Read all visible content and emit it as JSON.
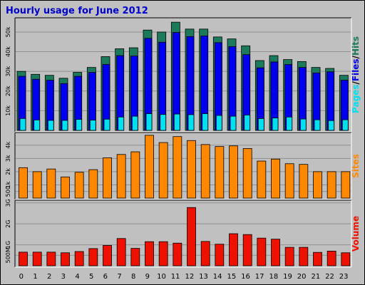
{
  "chart_data": {
    "type": "bar",
    "title": "Hourly usage for June 2012",
    "categories": [
      "0",
      "1",
      "2",
      "3",
      "4",
      "5",
      "6",
      "7",
      "8",
      "9",
      "10",
      "11",
      "12",
      "13",
      "14",
      "15",
      "16",
      "17",
      "18",
      "19",
      "20",
      "21",
      "22",
      "23"
    ],
    "panels": [
      {
        "id": "pages-files-hits",
        "side_labels": [
          "Pages",
          "/",
          "Files",
          "/",
          "Hits"
        ],
        "y_ticks": [
          "10k",
          "20k",
          "30k",
          "40k",
          "50k"
        ],
        "ylim": [
          0,
          56500
        ],
        "series": [
          {
            "name": "Hits",
            "values": [
              30000,
              28500,
              28000,
              26500,
              29500,
              32000,
              37500,
              41500,
              42000,
              51000,
              50000,
              55000,
              51500,
              51500,
              47500,
              46500,
              43000,
              35500,
              38000,
              36000,
              35000,
              32000,
              31500,
              28000
            ]
          },
          {
            "name": "Files",
            "values": [
              27500,
              26000,
              25500,
              23800,
              27500,
              29500,
              33500,
              38000,
              37800,
              46800,
              44800,
              49800,
              47700,
              48000,
              44600,
              42600,
              38500,
              31800,
              34800,
              33500,
              32000,
              29200,
              29800,
              25500
            ]
          },
          {
            "name": "Pages",
            "values": [
              6000,
              5300,
              5100,
              5100,
              5600,
              5200,
              5700,
              6800,
              7200,
              8500,
              8100,
              8300,
              8000,
              8500,
              7600,
              7200,
              7800,
              6000,
              6300,
              6800,
              5800,
              5400,
              5000,
              5400
            ]
          }
        ]
      },
      {
        "id": "sites",
        "side_labels": [
          "Sites"
        ],
        "y_ticks": [
          "500",
          "1k",
          "2k",
          "3k",
          "4k"
        ],
        "ylim": [
          0,
          4850
        ],
        "series": [
          {
            "name": "Sites",
            "values": [
              2300,
              2000,
              2200,
              1600,
              1950,
              2150,
              3050,
              3300,
              3500,
              4750,
              4200,
              4650,
              4350,
              4050,
              3900,
              3950,
              3750,
              2800,
              2950,
              2600,
              2550,
              2000,
              2000,
              2000
            ]
          }
        ]
      },
      {
        "id": "volume",
        "side_labels": [
          "Volume"
        ],
        "y_ticks": [
          "500M",
          "1G",
          "2G",
          "3G"
        ],
        "ylim": [
          0,
          3060
        ],
        "series": [
          {
            "name": "Volume",
            "values": [
              650,
              650,
              650,
              620,
              680,
              820,
              970,
              1300,
              830,
              1150,
              1150,
              1080,
              2780,
              1160,
              1030,
              1530,
              1490,
              1320,
              1270,
              880,
              880,
              640,
              700,
              620
            ]
          }
        ]
      }
    ]
  },
  "colors": {
    "hits": "#1b7a5c",
    "files": "#0000ee",
    "pages": "#00e0f0",
    "sites": "#ff8800",
    "volume": "#ee1100",
    "title": "#0000cc",
    "background": "#c0c0c0"
  }
}
